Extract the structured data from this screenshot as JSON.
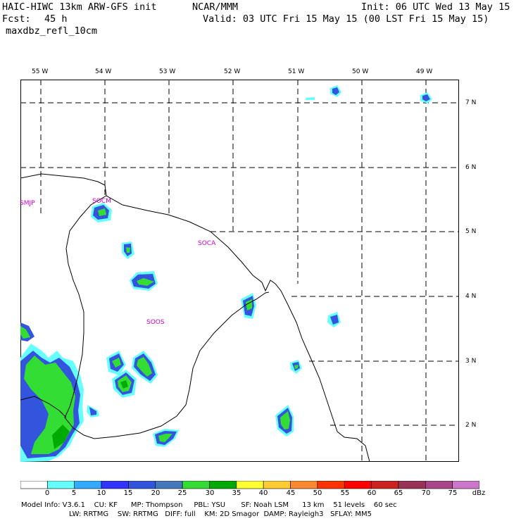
{
  "header": {
    "model": "HAIC-HIWC 13km ARW-GFS init",
    "org": "NCAR/MMM",
    "init": "Init: 06 UTC Wed 13 May 15",
    "fcst_label": "Fcst:",
    "fcst_value": "45 h",
    "valid": "Valid: 03 UTC Fri 15 May 15 (00 LST Fri 15 May 15)",
    "field": "maxdbz_refl_10cm"
  },
  "map": {
    "lon_ticks": [
      "55 W",
      "54 W",
      "53 W",
      "52 W",
      "51 W",
      "50 W",
      "49 W"
    ],
    "lat_ticks": [
      "7 N",
      "6 N",
      "5 N",
      "4 N",
      "3 N",
      "2 N"
    ],
    "station_labels": [
      "SMJP",
      "SOCM",
      "SOCA",
      "SOOS"
    ]
  },
  "colorbar": {
    "levels": [
      "0",
      "5",
      "10",
      "15",
      "20",
      "25",
      "30",
      "35",
      "40",
      "45",
      "50",
      "55",
      "60",
      "65",
      "70",
      "75"
    ],
    "unit": "dBz",
    "colors": [
      "#ffffff",
      "#66ffff",
      "#33aaff",
      "#3333ff",
      "#3355dd",
      "#4477bb",
      "#33dd33",
      "#00aa00",
      "#ffff33",
      "#ffcc33",
      "#ff8833",
      "#ff3300",
      "#ff0000",
      "#cc2222",
      "#993355",
      "#aa4488",
      "#cc77cc"
    ]
  },
  "footer": {
    "line1": "Model Info: V3.6.1    CU: KF      MP: Thompson     PBL: YSU       SF: Noah LSM      13 km    51 levels    60 sec",
    "line2": "LW: RRTMG    SW: RRTMG   DIFF: full    KM: 2D Smagor  DAMP: Rayleigh3   SFLAY: MM5"
  }
}
